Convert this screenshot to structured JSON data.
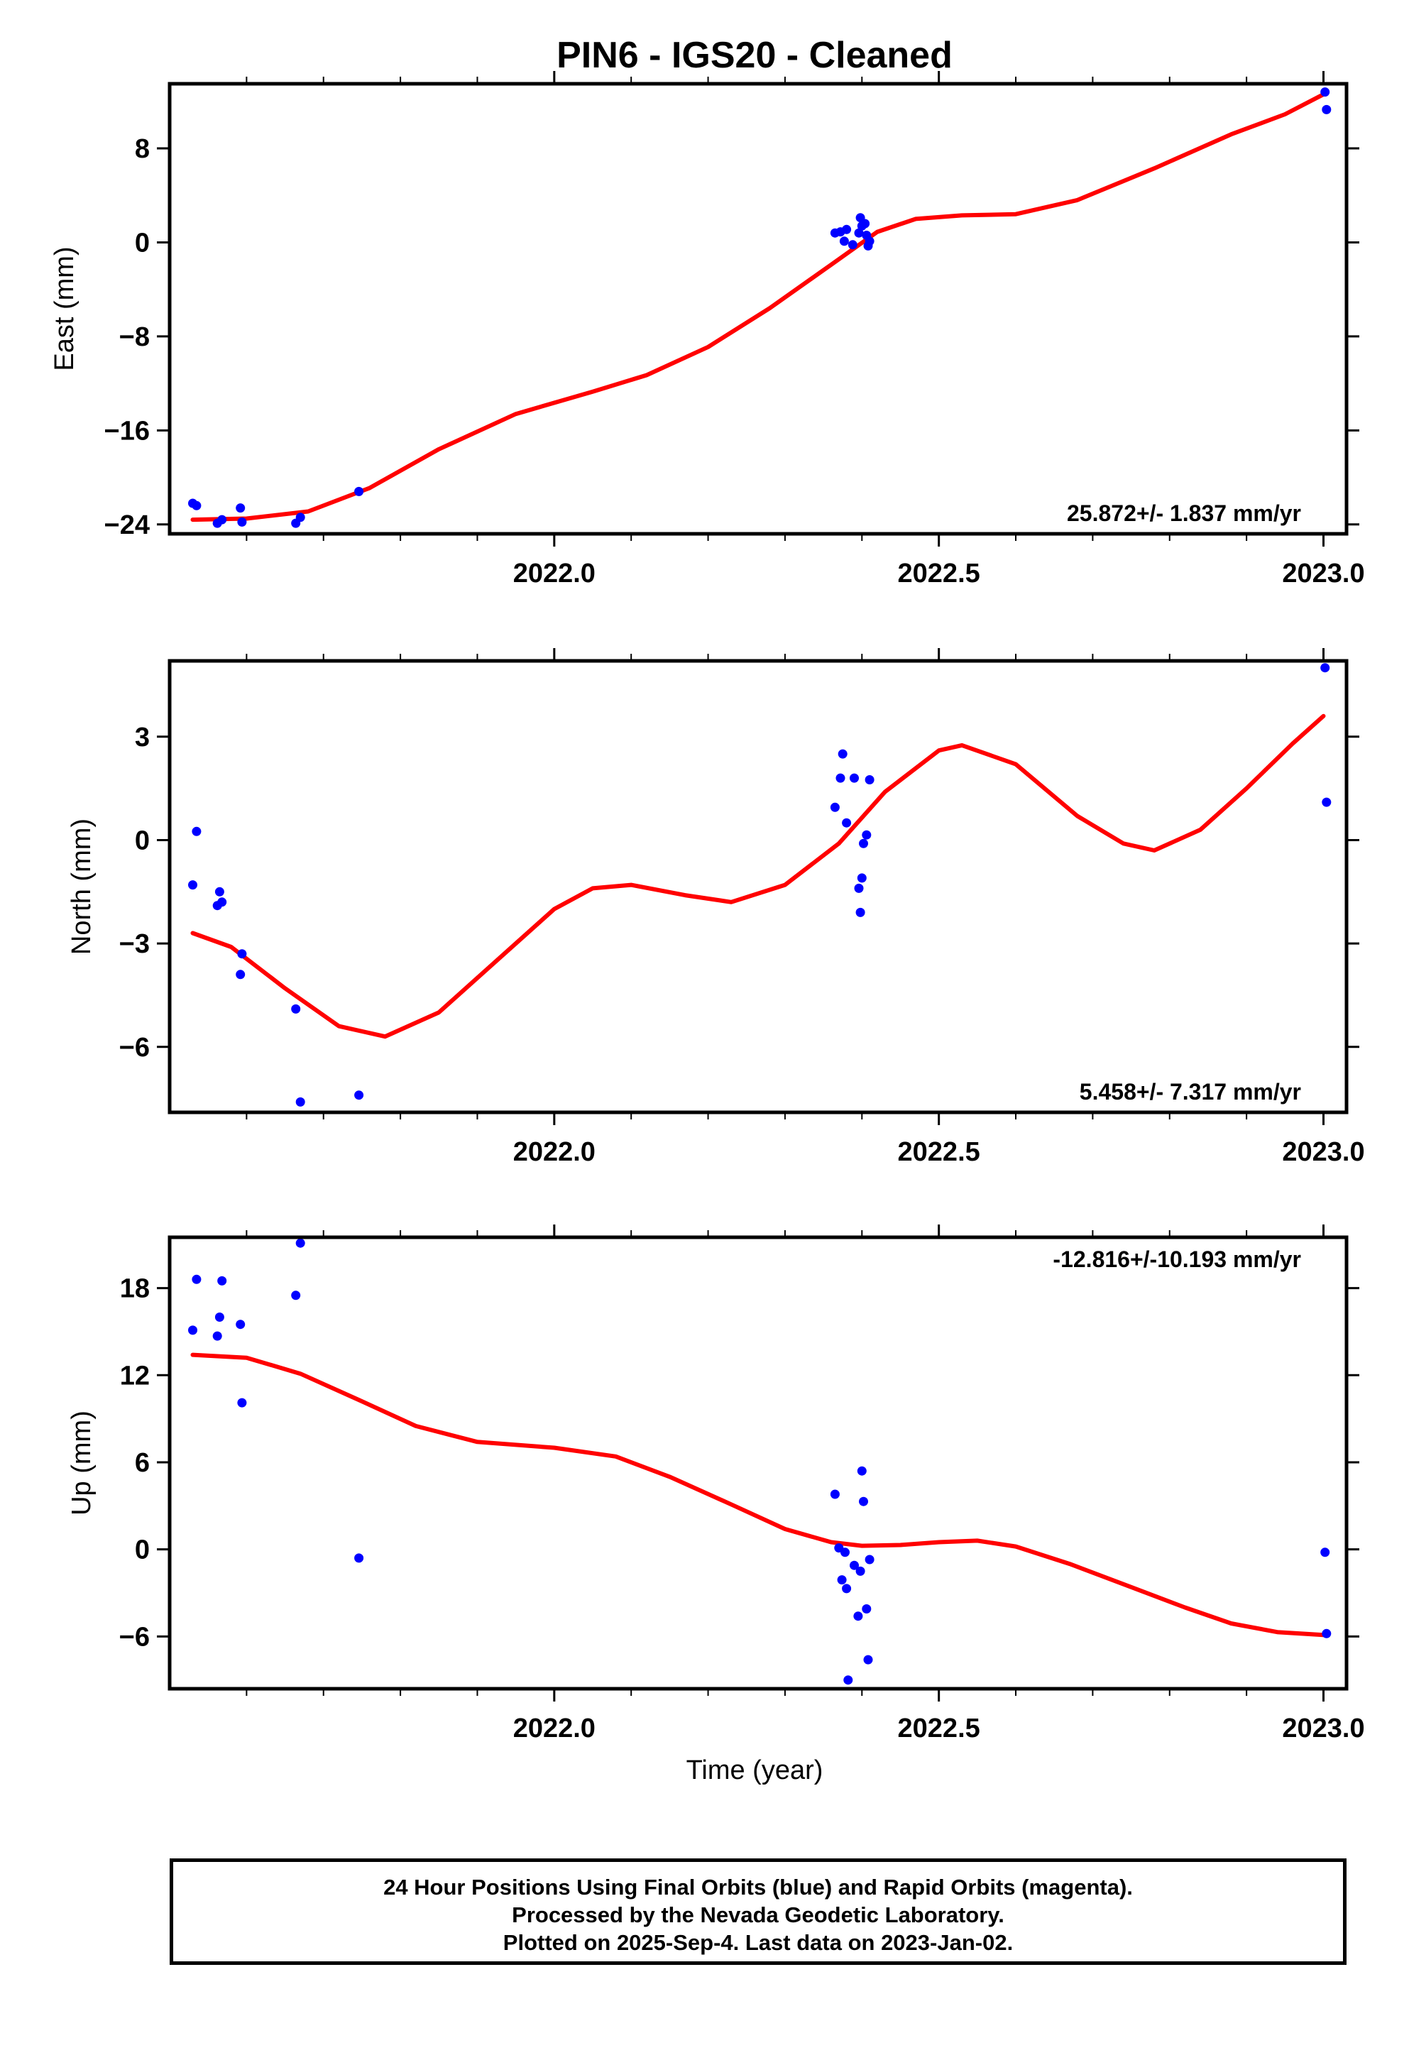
{
  "title": "PIN6  - IGS20 - Cleaned",
  "xlabel": "Time (year)",
  "caption": {
    "line1": "24 Hour Positions Using Final Orbits (blue) and Rapid Orbits (magenta).",
    "line2": "Processed by the Nevada Geodetic Laboratory.",
    "line3": "Plotted on 2025-Sep-4. Last data on 2023-Jan-02."
  },
  "colors": {
    "final_points": "#0000ff",
    "fit_curve": "#ff0000",
    "frame": "#000000"
  },
  "chart_data": [
    {
      "type": "scatter",
      "ylabel": "East (mm)",
      "xlim": [
        2021.5,
        2023.03
      ],
      "ylim": [
        -24.8,
        13.5
      ],
      "xticks": [
        2022.0,
        2022.5,
        2023.0
      ],
      "xtick_labels": [
        "2022.0",
        "2022.5",
        "2023.0"
      ],
      "yticks": [
        -24,
        -16,
        -8,
        0,
        8
      ],
      "ytick_labels": [
        "−24",
        "−16",
        "−8",
        "0",
        "8"
      ],
      "rate_label": "25.872+/- 1.837 mm/yr",
      "rate_label_position": "bottom-right",
      "series": [
        {
          "points": [
            [
              2021.53,
              -22.2
            ],
            [
              2021.535,
              -22.4
            ],
            [
              2021.562,
              -23.9
            ],
            [
              2021.568,
              -23.6
            ],
            [
              2021.592,
              -22.6
            ],
            [
              2021.594,
              -23.8
            ],
            [
              2021.664,
              -23.9
            ],
            [
              2021.67,
              -23.4
            ],
            [
              2021.746,
              -21.2
            ],
            [
              2022.365,
              0.8
            ],
            [
              2022.372,
              0.9
            ],
            [
              2022.377,
              0.1
            ],
            [
              2022.38,
              1.1
            ],
            [
              2022.388,
              -0.2
            ],
            [
              2022.396,
              0.8
            ],
            [
              2022.398,
              2.1
            ],
            [
              2022.4,
              1.4
            ],
            [
              2022.404,
              1.6
            ],
            [
              2022.406,
              0.6
            ],
            [
              2022.408,
              -0.3
            ],
            [
              2022.41,
              0.1
            ],
            [
              2023.002,
              12.8
            ],
            [
              2023.004,
              11.3
            ]
          ]
        },
        {
          "type": "line",
          "points": [
            [
              2021.53,
              -23.6
            ],
            [
              2021.6,
              -23.5
            ],
            [
              2021.68,
              -22.9
            ],
            [
              2021.76,
              -20.9
            ],
            [
              2021.85,
              -17.6
            ],
            [
              2021.95,
              -14.6
            ],
            [
              2022.05,
              -12.7
            ],
            [
              2022.12,
              -11.3
            ],
            [
              2022.2,
              -8.9
            ],
            [
              2022.28,
              -5.6
            ],
            [
              2022.36,
              -1.9
            ],
            [
              2022.42,
              0.9
            ],
            [
              2022.47,
              2.0
            ],
            [
              2022.53,
              2.3
            ],
            [
              2022.6,
              2.4
            ],
            [
              2022.68,
              3.6
            ],
            [
              2022.78,
              6.3
            ],
            [
              2022.88,
              9.2
            ],
            [
              2022.95,
              10.9
            ],
            [
              2023.0,
              12.6
            ]
          ]
        }
      ]
    },
    {
      "type": "scatter",
      "ylabel": "North (mm)",
      "xlim": [
        2021.5,
        2023.03
      ],
      "ylim": [
        -7.9,
        5.2
      ],
      "xticks": [
        2022.0,
        2022.5,
        2023.0
      ],
      "xtick_labels": [
        "2022.0",
        "2022.5",
        "2023.0"
      ],
      "yticks": [
        -6,
        -3,
        0,
        3
      ],
      "ytick_labels": [
        "−6",
        "−3",
        "0",
        "3"
      ],
      "rate_label": "5.458+/- 7.317 mm/yr",
      "rate_label_position": "bottom-right",
      "series": [
        {
          "points": [
            [
              2021.53,
              -1.3
            ],
            [
              2021.535,
              0.25
            ],
            [
              2021.562,
              -1.9
            ],
            [
              2021.565,
              -1.5
            ],
            [
              2021.568,
              -1.8
            ],
            [
              2021.592,
              -3.9
            ],
            [
              2021.594,
              -3.3
            ],
            [
              2021.664,
              -4.9
            ],
            [
              2021.67,
              -7.6
            ],
            [
              2021.746,
              -7.4
            ],
            [
              2022.365,
              0.95
            ],
            [
              2022.372,
              1.8
            ],
            [
              2022.375,
              2.5
            ],
            [
              2022.38,
              0.5
            ],
            [
              2022.39,
              1.8
            ],
            [
              2022.396,
              -1.4
            ],
            [
              2022.398,
              -2.1
            ],
            [
              2022.4,
              -1.1
            ],
            [
              2022.402,
              -0.1
            ],
            [
              2022.406,
              0.15
            ],
            [
              2022.41,
              1.75
            ],
            [
              2023.002,
              5.0
            ],
            [
              2023.004,
              1.1
            ]
          ]
        },
        {
          "type": "line",
          "points": [
            [
              2021.53,
              -2.7
            ],
            [
              2021.58,
              -3.1
            ],
            [
              2021.65,
              -4.3
            ],
            [
              2021.72,
              -5.4
            ],
            [
              2021.78,
              -5.7
            ],
            [
              2021.85,
              -5.0
            ],
            [
              2021.93,
              -3.4
            ],
            [
              2022.0,
              -2.0
            ],
            [
              2022.05,
              -1.4
            ],
            [
              2022.1,
              -1.3
            ],
            [
              2022.17,
              -1.6
            ],
            [
              2022.23,
              -1.8
            ],
            [
              2022.3,
              -1.3
            ],
            [
              2022.37,
              -0.1
            ],
            [
              2022.43,
              1.4
            ],
            [
              2022.5,
              2.6
            ],
            [
              2022.53,
              2.75
            ],
            [
              2022.6,
              2.2
            ],
            [
              2022.68,
              0.7
            ],
            [
              2022.74,
              -0.1
            ],
            [
              2022.78,
              -0.3
            ],
            [
              2022.84,
              0.3
            ],
            [
              2022.9,
              1.5
            ],
            [
              2022.96,
              2.8
            ],
            [
              2023.0,
              3.6
            ]
          ]
        }
      ]
    },
    {
      "type": "scatter",
      "ylabel": "Up (mm)",
      "xlim": [
        2021.5,
        2023.03
      ],
      "ylim": [
        -9.6,
        21.5
      ],
      "xticks": [
        2022.0,
        2022.5,
        2023.0
      ],
      "xtick_labels": [
        "2022.0",
        "2022.5",
        "2023.0"
      ],
      "yticks": [
        -6,
        0,
        6,
        12,
        18
      ],
      "ytick_labels": [
        "−6",
        "0",
        "6",
        "12",
        "18"
      ],
      "rate_label": "-12.816+/-10.193 mm/yr",
      "rate_label_position": "top-right",
      "series": [
        {
          "points": [
            [
              2021.53,
              15.1
            ],
            [
              2021.535,
              18.6
            ],
            [
              2021.562,
              14.7
            ],
            [
              2021.565,
              16.0
            ],
            [
              2021.568,
              18.5
            ],
            [
              2021.592,
              15.5
            ],
            [
              2021.594,
              10.1
            ],
            [
              2021.664,
              17.5
            ],
            [
              2021.67,
              21.1
            ],
            [
              2021.746,
              -0.6
            ],
            [
              2022.365,
              3.8
            ],
            [
              2022.37,
              0.1
            ],
            [
              2022.374,
              -2.1
            ],
            [
              2022.378,
              -0.2
            ],
            [
              2022.38,
              -2.7
            ],
            [
              2022.382,
              -9.0
            ],
            [
              2022.39,
              -1.1
            ],
            [
              2022.395,
              -4.6
            ],
            [
              2022.398,
              -1.5
            ],
            [
              2022.4,
              5.4
            ],
            [
              2022.402,
              3.3
            ],
            [
              2022.406,
              -4.1
            ],
            [
              2022.408,
              -7.6
            ],
            [
              2022.41,
              -0.7
            ],
            [
              2023.002,
              -0.2
            ],
            [
              2023.004,
              -5.8
            ]
          ]
        },
        {
          "type": "line",
          "points": [
            [
              2021.53,
              13.4
            ],
            [
              2021.6,
              13.2
            ],
            [
              2021.67,
              12.1
            ],
            [
              2021.75,
              10.2
            ],
            [
              2021.82,
              8.5
            ],
            [
              2021.9,
              7.4
            ],
            [
              2022.0,
              7.0
            ],
            [
              2022.08,
              6.4
            ],
            [
              2022.15,
              5.0
            ],
            [
              2022.23,
              3.1
            ],
            [
              2022.3,
              1.4
            ],
            [
              2022.36,
              0.5
            ],
            [
              2022.4,
              0.25
            ],
            [
              2022.45,
              0.3
            ],
            [
              2022.5,
              0.5
            ],
            [
              2022.55,
              0.6
            ],
            [
              2022.6,
              0.2
            ],
            [
              2022.67,
              -1.0
            ],
            [
              2022.75,
              -2.6
            ],
            [
              2022.82,
              -4.0
            ],
            [
              2022.88,
              -5.1
            ],
            [
              2022.94,
              -5.7
            ],
            [
              2023.0,
              -5.9
            ]
          ]
        }
      ]
    }
  ]
}
